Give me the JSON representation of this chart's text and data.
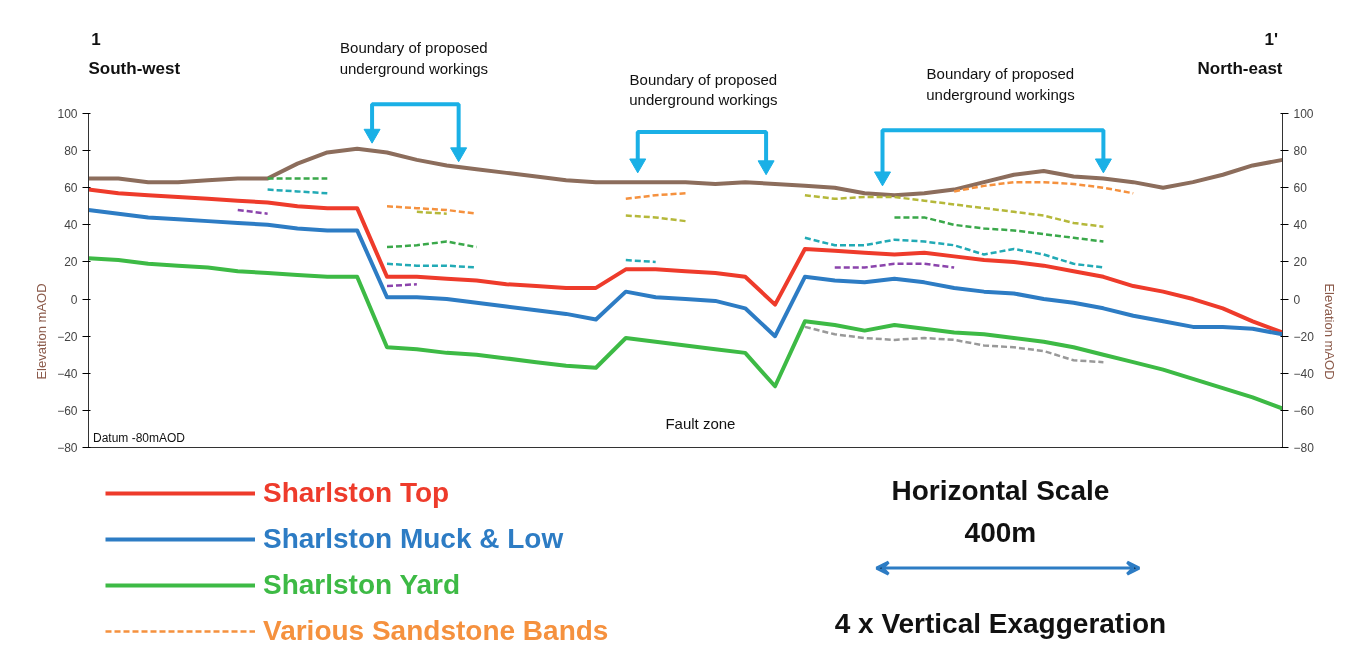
{
  "chart_data": {
    "type": "line",
    "categories": [
      null,
      null,
      null,
      null,
      null,
      null,
      null,
      null,
      null,
      null,
      null,
      null,
      null,
      null,
      null,
      null,
      null,
      null,
      null,
      null,
      null,
      null,
      null,
      null,
      null,
      null,
      null,
      null,
      null,
      null,
      null,
      null,
      null,
      null,
      null,
      null,
      null,
      null,
      null,
      null,
      null
    ],
    "ylabel": "Elevation mAOD",
    "y2label": "Elevation mAOD",
    "ylim": [
      -80,
      100
    ],
    "yticks": [
      -80,
      -60,
      -40,
      -20,
      0,
      20,
      40,
      60,
      80,
      100
    ],
    "y2lim": [
      -80,
      100
    ],
    "y2ticks": [
      -80,
      -60,
      -40,
      -20,
      0,
      20,
      40,
      60,
      80,
      100
    ],
    "tick_labels": "y",
    "grid": false,
    "legend": "bottom",
    "marker": "none",
    "annotations": [
      "1",
      "South-west",
      "1'",
      "North-east",
      "Boundary of proposed\nunderground workings",
      "Boundary of proposed\nunderground workings",
      "Boundary of proposed\nunderground workings",
      "Fault zone",
      "Datum -80mAOD",
      "Horizontal Scale",
      "400m",
      "4 x Vertical Exaggeration"
    ],
    "series": [
      {
        "color": "#8c6d5c",
        "line_style": "solid",
        "values": [
          65,
          65,
          63,
          63,
          64,
          65,
          65,
          73,
          79,
          81,
          79,
          75,
          72,
          70,
          68,
          66,
          64,
          63,
          63,
          63,
          63,
          62,
          63,
          62,
          61,
          60,
          57,
          56,
          57,
          59,
          63,
          67,
          69,
          66,
          65,
          63,
          60,
          63,
          67,
          72,
          75
        ]
      },
      {
        "name": "Sharlston Top",
        "color": "#ee3b2b",
        "line_style": "solid",
        "values": [
          59,
          57,
          56,
          55,
          54,
          53,
          52,
          50,
          49,
          49,
          12,
          12,
          11,
          10,
          8,
          7,
          6,
          6,
          16,
          16,
          15,
          14,
          12,
          -3,
          27,
          26,
          25,
          24,
          25,
          23,
          21,
          20,
          18,
          15,
          12,
          7,
          4,
          0,
          -5,
          -12,
          -18
        ]
      },
      {
        "name": "Sharlston Muck & Low",
        "color": "#2d7cc4",
        "line_style": "solid",
        "values": [
          48,
          46,
          44,
          43,
          42,
          41,
          40,
          38,
          37,
          37,
          1,
          1,
          0,
          -2,
          -4,
          -6,
          -8,
          -11,
          4,
          1,
          0,
          -1,
          -5,
          -20,
          12,
          10,
          9,
          11,
          9,
          6,
          4,
          3,
          0,
          -2,
          -5,
          -9,
          -12,
          -15,
          -15,
          -16,
          -19
        ]
      },
      {
        "name": "Sharlston Yard",
        "color": "#3dba45",
        "line_style": "solid",
        "values": [
          22,
          21,
          19,
          18,
          17,
          15,
          14,
          13,
          12,
          12,
          -26,
          -27,
          -29,
          -30,
          -32,
          -34,
          -36,
          -37,
          -21,
          -23,
          -25,
          -27,
          -29,
          -47,
          -12,
          -14,
          -17,
          -14,
          -16,
          -18,
          -19,
          -21,
          -23,
          -26,
          -30,
          -34,
          -38,
          -43,
          -48,
          -53,
          -59
        ]
      },
      {
        "name": "Various Sandstone Bands",
        "color": "#f5913e",
        "line_style": "dashed",
        "values": [
          null,
          null,
          null,
          null,
          null,
          null,
          null,
          null,
          null,
          null,
          50,
          49,
          48,
          46,
          null,
          null,
          null,
          null,
          54,
          56,
          57,
          null,
          null,
          null,
          null,
          null,
          null,
          null,
          null,
          58,
          61,
          63,
          63,
          62,
          60,
          57,
          null,
          null,
          null,
          null,
          null
        ]
      },
      {
        "color": "#b5b83a",
        "line_style": "dashed",
        "values": [
          null,
          null,
          null,
          null,
          null,
          null,
          null,
          null,
          null,
          null,
          null,
          47,
          46,
          null,
          null,
          null,
          null,
          null,
          45,
          44,
          42,
          null,
          null,
          null,
          56,
          54,
          55,
          55,
          53,
          51,
          49,
          47,
          45,
          41,
          39,
          null,
          null,
          null,
          null,
          null,
          null
        ]
      },
      {
        "color": "#3aa84a",
        "line_style": "dashed",
        "values": [
          null,
          null,
          null,
          null,
          null,
          null,
          65,
          65,
          65,
          null,
          28,
          29,
          31,
          28,
          null,
          null,
          null,
          null,
          null,
          null,
          null,
          null,
          null,
          null,
          null,
          null,
          null,
          44,
          44,
          40,
          38,
          37,
          35,
          33,
          31,
          null,
          null,
          null,
          null,
          null,
          null
        ]
      },
      {
        "color": "#22aab5",
        "line_style": "dashed",
        "values": [
          null,
          null,
          null,
          null,
          null,
          null,
          59,
          58,
          57,
          null,
          19,
          18,
          18,
          17,
          null,
          null,
          null,
          null,
          21,
          20,
          null,
          null,
          null,
          null,
          33,
          29,
          29,
          32,
          31,
          29,
          24,
          27,
          24,
          19,
          17,
          null,
          null,
          null,
          null,
          null,
          null
        ]
      },
      {
        "color": "#8b44ac",
        "line_style": "dashed",
        "values": [
          null,
          null,
          null,
          null,
          null,
          48,
          46,
          null,
          null,
          null,
          7,
          8,
          null,
          null,
          null,
          null,
          null,
          null,
          null,
          null,
          null,
          null,
          null,
          null,
          null,
          17,
          17,
          19,
          19,
          17,
          null,
          null,
          null,
          null,
          null,
          null,
          null,
          null,
          null,
          null,
          null
        ]
      },
      {
        "color": "#999999",
        "line_style": "dashed",
        "values": [
          null,
          null,
          null,
          null,
          null,
          null,
          null,
          null,
          null,
          null,
          null,
          null,
          null,
          null,
          null,
          null,
          null,
          null,
          null,
          null,
          null,
          null,
          null,
          null,
          -15,
          -19,
          -21,
          -22,
          -21,
          -22,
          -25,
          -26,
          -28,
          -33,
          -34,
          null,
          null,
          null,
          null,
          null,
          null
        ]
      }
    ]
  }
}
